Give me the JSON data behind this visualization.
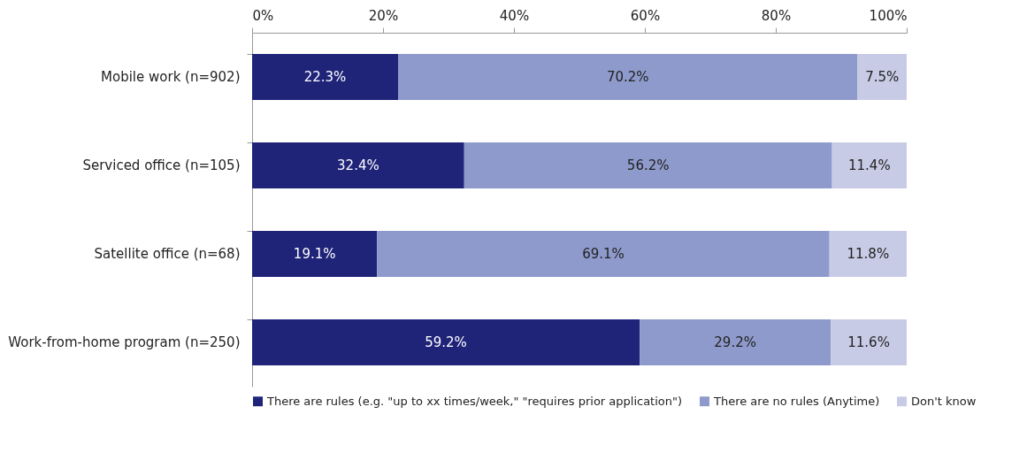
{
  "chart_data": {
    "type": "bar",
    "orientation": "horizontal",
    "stacked": true,
    "categories": [
      "Mobile work (n=902)",
      "Serviced office (n=105)",
      "Satellite office (n=68)",
      "Work-from-home program (n=250)"
    ],
    "series": [
      {
        "name": "There are rules (e.g. \"up to xx times/week,\" \"requires prior application\")",
        "color": "#1f2479",
        "values": [
          22.3,
          32.4,
          19.1,
          59.2
        ],
        "value_labels": [
          "22.3%",
          "32.4%",
          "19.1%",
          "59.2%"
        ]
      },
      {
        "name": "There are no rules (Anytime)",
        "color": "#8e9acb",
        "values": [
          70.2,
          56.2,
          69.1,
          29.2
        ],
        "value_labels": [
          "70.2%",
          "56.2%",
          "69.1%",
          "29.2%"
        ]
      },
      {
        "name": "Don't know",
        "color": "#c8cbe5",
        "values": [
          7.5,
          11.4,
          11.8,
          11.6
        ],
        "value_labels": [
          "7.5%",
          "11.4%",
          "11.8%",
          "11.6%"
        ]
      }
    ],
    "xlim": [
      0,
      100
    ],
    "xticks": [
      {
        "value": 0,
        "label": "0%"
      },
      {
        "value": 20,
        "label": "20%"
      },
      {
        "value": 40,
        "label": "40%"
      },
      {
        "value": 60,
        "label": "60%"
      },
      {
        "value": 80,
        "label": "80%"
      },
      {
        "value": 100,
        "label": "100%"
      }
    ],
    "grid": false,
    "legend": "bottom"
  }
}
